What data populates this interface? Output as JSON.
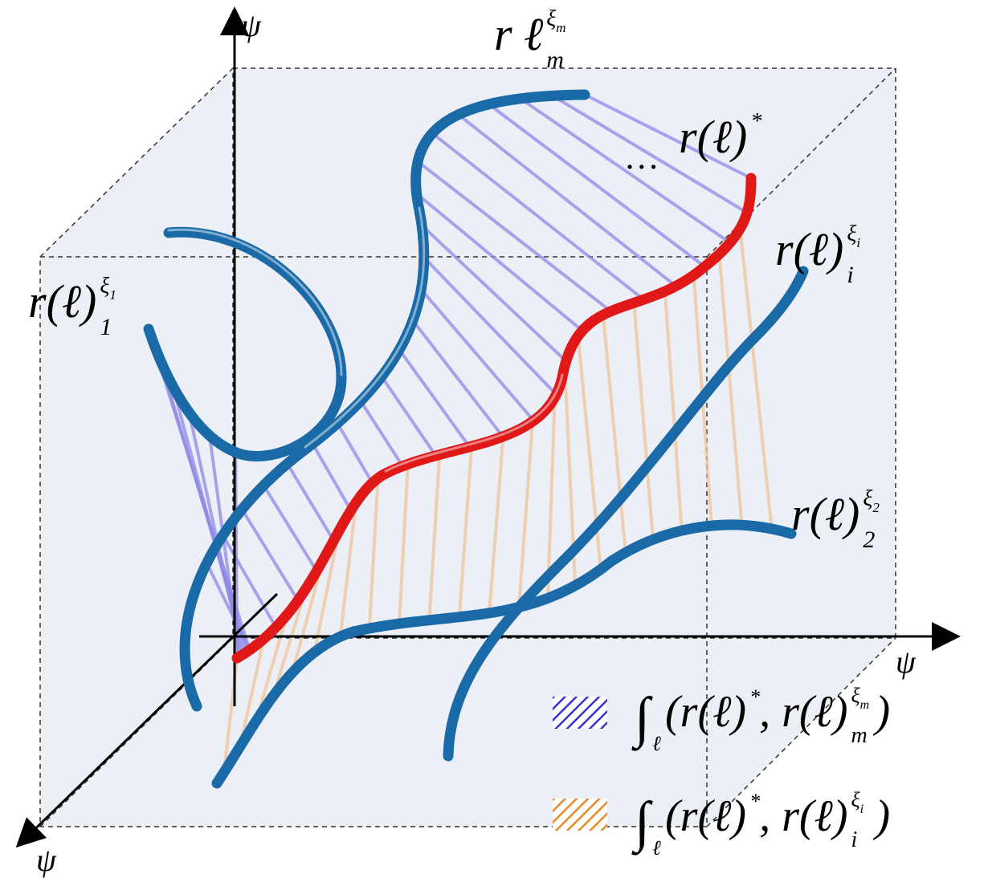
{
  "axes": {
    "y": "ψ",
    "x": "ψ",
    "z": "ψ"
  },
  "labels": [
    {
      "main": "r(ℓ)",
      "sup": "ξ",
      "sup_index": "1",
      "sub": "1"
    },
    {
      "main": "r  ℓ",
      "sup": "ξ",
      "sup_index": "m",
      "sub": "m"
    },
    {
      "main": "r(ℓ)",
      "sup": "*"
    },
    {
      "main": "r(ℓ)",
      "sup": "ξ",
      "sup_index": "i",
      "sub": "i"
    },
    {
      "main": "r(ℓ)",
      "sup": "ξ",
      "sup_index": "2",
      "sub": "2"
    }
  ],
  "ellipsis": "…",
  "legend": [
    {
      "integral": "∫",
      "integral_sub": "ℓ",
      "left": "(r(ℓ)",
      "left_sup": "*",
      "right": ",  r(ℓ)",
      "right_sup": "ξ",
      "right_sup_index": "m",
      "right_sub": "m",
      "close": ")"
    },
    {
      "integral": "∫",
      "integral_sub": "ℓ",
      "left": "(r(ℓ)",
      "left_sup": "*",
      "right": ",  r(ℓ)",
      "right_sup": "ξ",
      "right_sup_index": "i",
      "right_sub": "i",
      "close": ")"
    }
  ]
}
